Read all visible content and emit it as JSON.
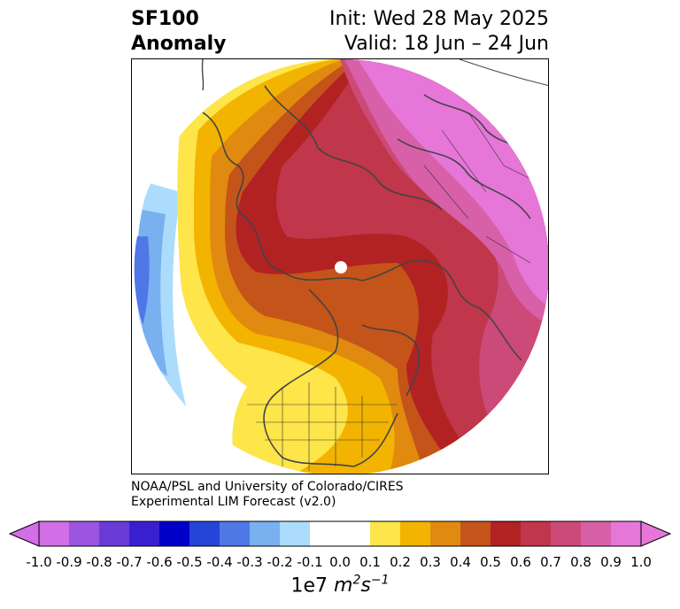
{
  "header": {
    "variable": "SF100",
    "kind": "Anomaly",
    "init": "Init: Wed 28 May 2025",
    "valid": "Valid: 18 Jun – 24 Jun"
  },
  "credit": {
    "line1": "NOAA/PSL and University of Colorado/CIRES",
    "line2": "Experimental LIM Forecast (v2.0)"
  },
  "colorbar": {
    "ticks": [
      "-1.0",
      "-0.9",
      "-0.8",
      "-0.7",
      "-0.6",
      "-0.5",
      "-0.4",
      "-0.3",
      "-0.2",
      "-0.1",
      "0.0",
      "0.1",
      "0.2",
      "0.3",
      "0.4",
      "0.5",
      "0.6",
      "0.7",
      "0.8",
      "0.9",
      "1.0"
    ],
    "colors": [
      "#d26ee6",
      "#9b55e0",
      "#6a3ad6",
      "#3a1fd0",
      "#0000c8",
      "#2545d8",
      "#4f78e6",
      "#78b0f0",
      "#acdcfc",
      "#ffffff",
      "#ffffff",
      "#fde54a",
      "#f2b400",
      "#e08a10",
      "#c4541a",
      "#b22222",
      "#c0364b",
      "#cc4a78",
      "#d860a8",
      "#e676d8"
    ],
    "units_base": "1e7 ",
    "units_m": "m",
    "units_m_exp": "2",
    "units_s": "s",
    "units_s_exp": "−1"
  }
}
